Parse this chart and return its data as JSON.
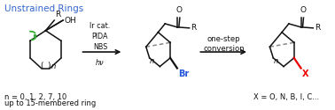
{
  "title": "Unstrained Rings",
  "title_color": "#3366CC",
  "background_color": "#ffffff",
  "conditions_text": "Ir cat.\nPIDA\nNBS",
  "hv_text": "hν",
  "one_step_text": "one-step\nconversion",
  "n_values_text": "n = 0, 1, 2, 7, 10",
  "ring_text": "up to 15-membered ring",
  "x_equals_text": "X = O, N, B, I, C...",
  "br_color": "#2255DD",
  "x_color": "#EE0000",
  "green_color": "#33AA33",
  "black_color": "#111111",
  "gray_color": "#444444"
}
